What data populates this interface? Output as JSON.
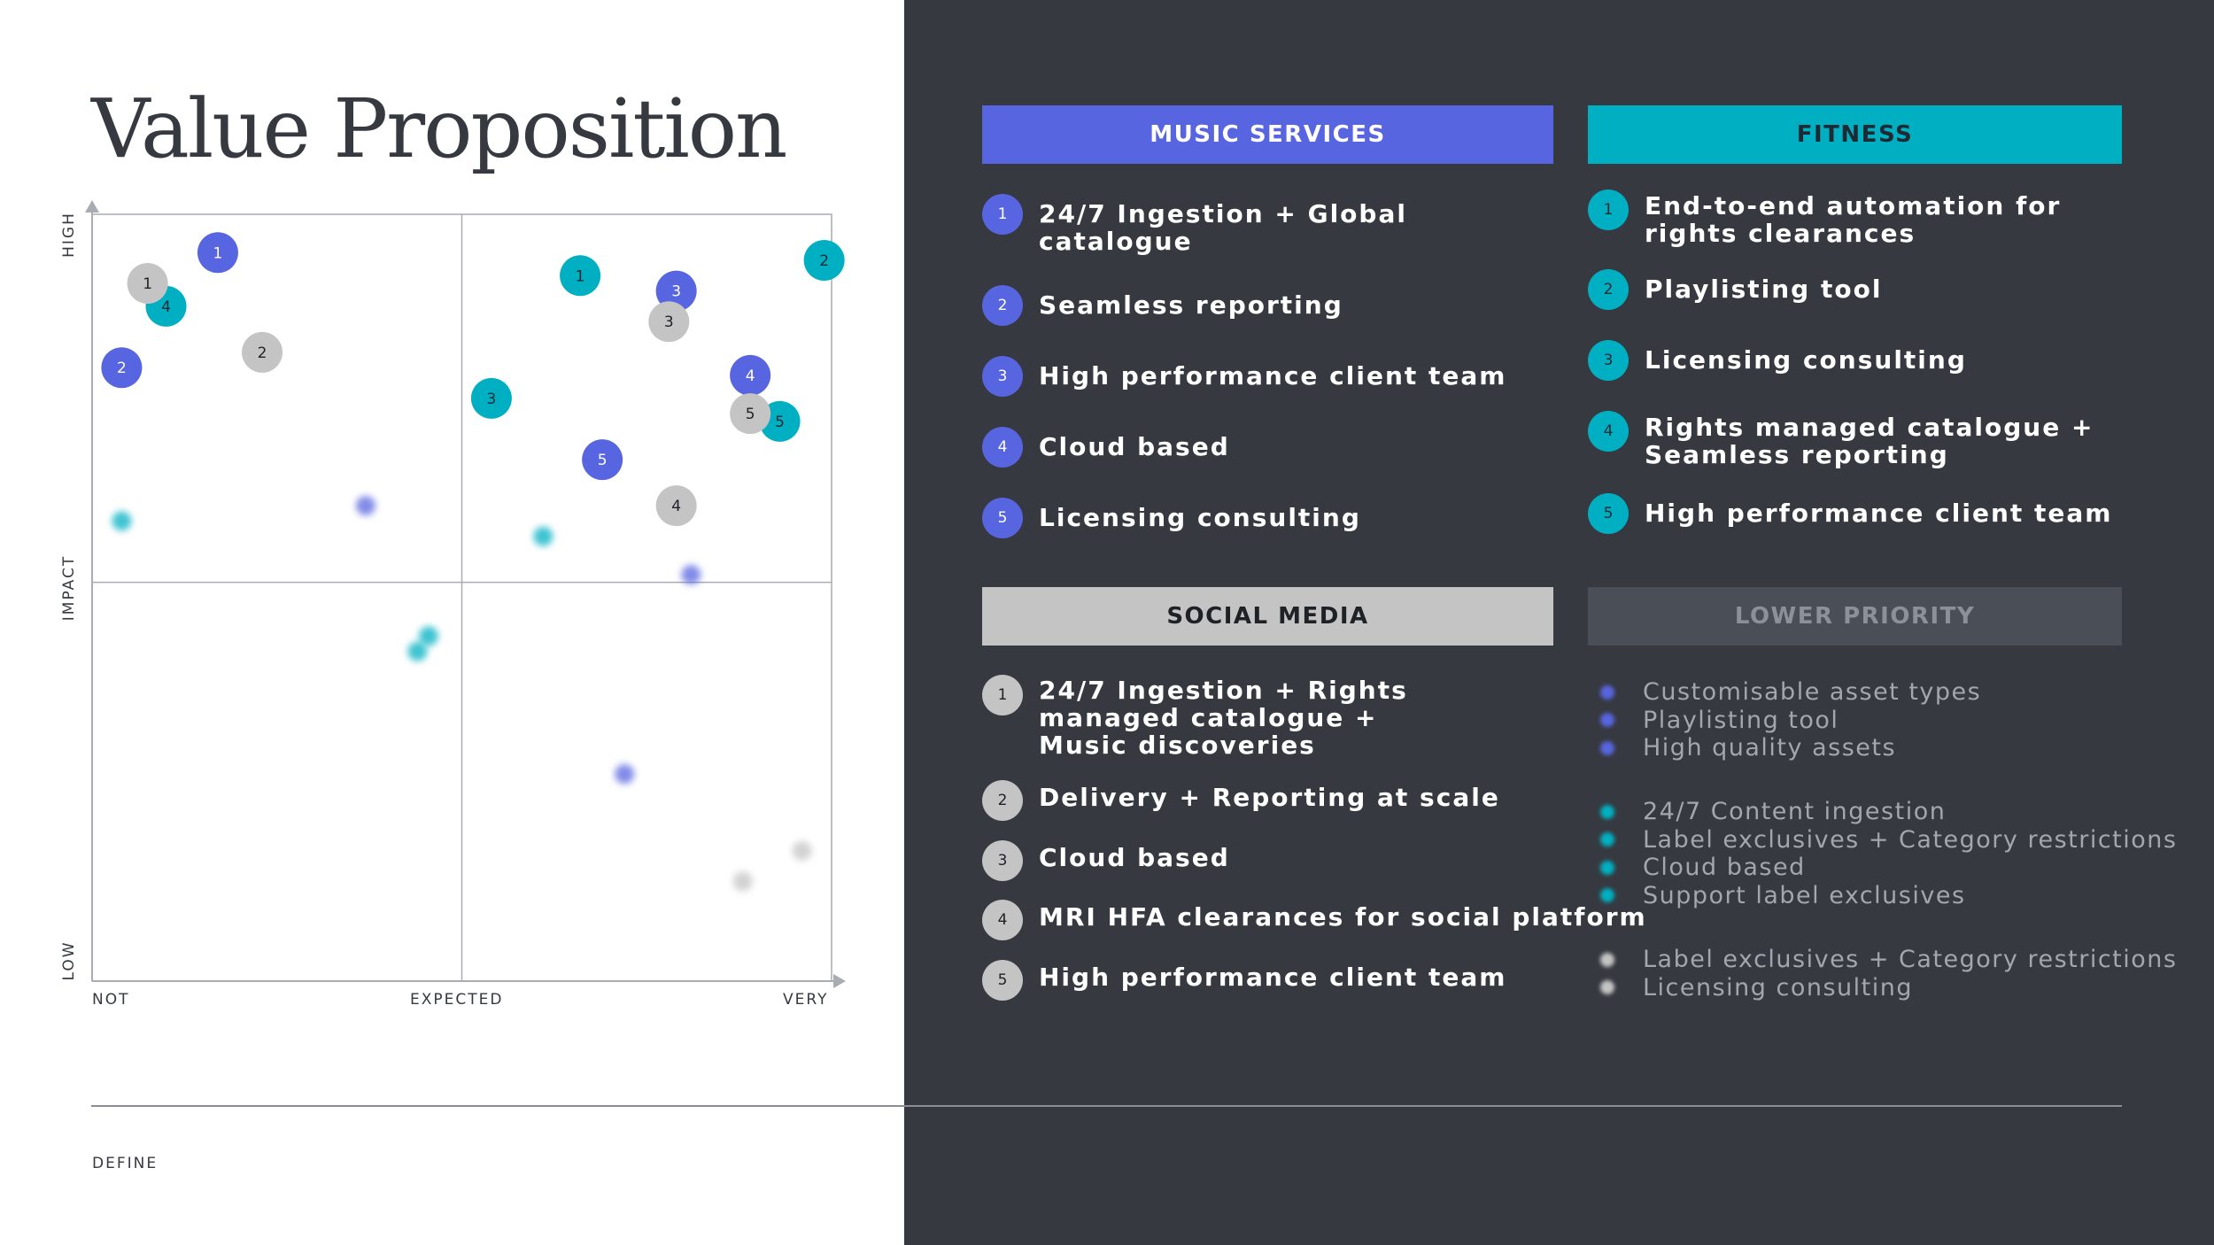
{
  "colors": {
    "music": "#5865e0",
    "fitness": "#00b0c2",
    "social": "#c4c4c4",
    "lower": "#4a4e57",
    "dark": "#363940"
  },
  "title": "Value Proposition",
  "footer": {
    "label": "DEFINE"
  },
  "chart_data": {
    "type": "scatter",
    "xlabel": "",
    "ylabel": "IMPACT",
    "x_ticks": [
      "NOT",
      "EXPECTED",
      "VERY"
    ],
    "y_ticks": [
      "LOW",
      "IMPACT",
      "HIGH"
    ],
    "xlim": [
      0,
      100
    ],
    "ylim": [
      0,
      100
    ],
    "quadrant_split": {
      "x": 50,
      "y": 52
    },
    "series": [
      {
        "name": "Music Services",
        "color": "#5865e0",
        "points": [
          {
            "label": "1",
            "x": 17,
            "y": 95
          },
          {
            "label": "2",
            "x": 4,
            "y": 80
          },
          {
            "label": "3",
            "x": 79,
            "y": 90
          },
          {
            "label": "4",
            "x": 89,
            "y": 79
          },
          {
            "label": "5",
            "x": 69,
            "y": 68
          }
        ]
      },
      {
        "name": "Fitness",
        "color": "#00b0c2",
        "points": [
          {
            "label": "1",
            "x": 66,
            "y": 92
          },
          {
            "label": "2",
            "x": 99,
            "y": 94
          },
          {
            "label": "3",
            "x": 54,
            "y": 76
          },
          {
            "label": "4",
            "x": 10,
            "y": 88
          },
          {
            "label": "5",
            "x": 93,
            "y": 73
          }
        ]
      },
      {
        "name": "Social Media",
        "color": "#c4c4c4",
        "points": [
          {
            "label": "1",
            "x": 7.5,
            "y": 91
          },
          {
            "label": "2",
            "x": 23,
            "y": 82
          },
          {
            "label": "3",
            "x": 78,
            "y": 86
          },
          {
            "label": "4",
            "x": 79,
            "y": 62
          },
          {
            "label": "5",
            "x": 89,
            "y": 74
          }
        ]
      },
      {
        "name": "Lower Priority",
        "faded": true,
        "points": [
          {
            "x": 4,
            "y": 60,
            "color": "#00b0c2"
          },
          {
            "x": 37,
            "y": 62,
            "color": "#5865e0"
          },
          {
            "x": 61,
            "y": 58,
            "color": "#00b0c2"
          },
          {
            "x": 81,
            "y": 53,
            "color": "#5865e0"
          },
          {
            "x": 45.5,
            "y": 45,
            "color": "#00b0c2"
          },
          {
            "x": 44,
            "y": 43,
            "color": "#00b0c2"
          },
          {
            "x": 72,
            "y": 27,
            "color": "#5865e0"
          },
          {
            "x": 96,
            "y": 17,
            "color": "#c4c4c4"
          },
          {
            "x": 88,
            "y": 13,
            "color": "#c4c4c4"
          }
        ]
      }
    ]
  },
  "panels": {
    "music": {
      "title": "MUSIC SERVICES",
      "items": [
        {
          "num": "1",
          "text": "24/7 Ingestion + Global catalogue"
        },
        {
          "num": "2",
          "text": "Seamless reporting"
        },
        {
          "num": "3",
          "text": "High performance client team"
        },
        {
          "num": "4",
          "text": "Cloud based"
        },
        {
          "num": "5",
          "text": "Licensing consulting"
        }
      ]
    },
    "fitness": {
      "title": "FITNESS",
      "items": [
        {
          "num": "1",
          "text": "End-to-end automation for rights clearances"
        },
        {
          "num": "2",
          "text": "Playlisting tool"
        },
        {
          "num": "3",
          "text": "Licensing consulting"
        },
        {
          "num": "4",
          "text": "Rights managed catalogue + Seamless reporting"
        },
        {
          "num": "5",
          "text": "High performance client team"
        }
      ]
    },
    "social": {
      "title": "SOCIAL MEDIA",
      "items": [
        {
          "num": "1",
          "text": "24/7 Ingestion + Rights managed catalogue + Music discoveries"
        },
        {
          "num": "2",
          "text": "Delivery + Reporting at scale"
        },
        {
          "num": "3",
          "text": "Cloud based"
        },
        {
          "num": "4",
          "text": "MRI HFA clearances for social platform"
        },
        {
          "num": "5",
          "text": "High performance client team"
        }
      ]
    },
    "lower": {
      "title": "LOWER PRIORITY",
      "groups": [
        {
          "color": "#5865e0",
          "items": [
            "Customisable asset types",
            "Playlisting tool",
            "High quality assets"
          ]
        },
        {
          "color": "#00b0c2",
          "items": [
            "24/7 Content ingestion",
            "Label exclusives + Category restrictions",
            "Cloud based",
            "Support label exclusives"
          ]
        },
        {
          "color": "#c4c4c4",
          "items": [
            "Label exclusives + Category restrictions",
            "Licensing consulting"
          ]
        }
      ]
    }
  }
}
